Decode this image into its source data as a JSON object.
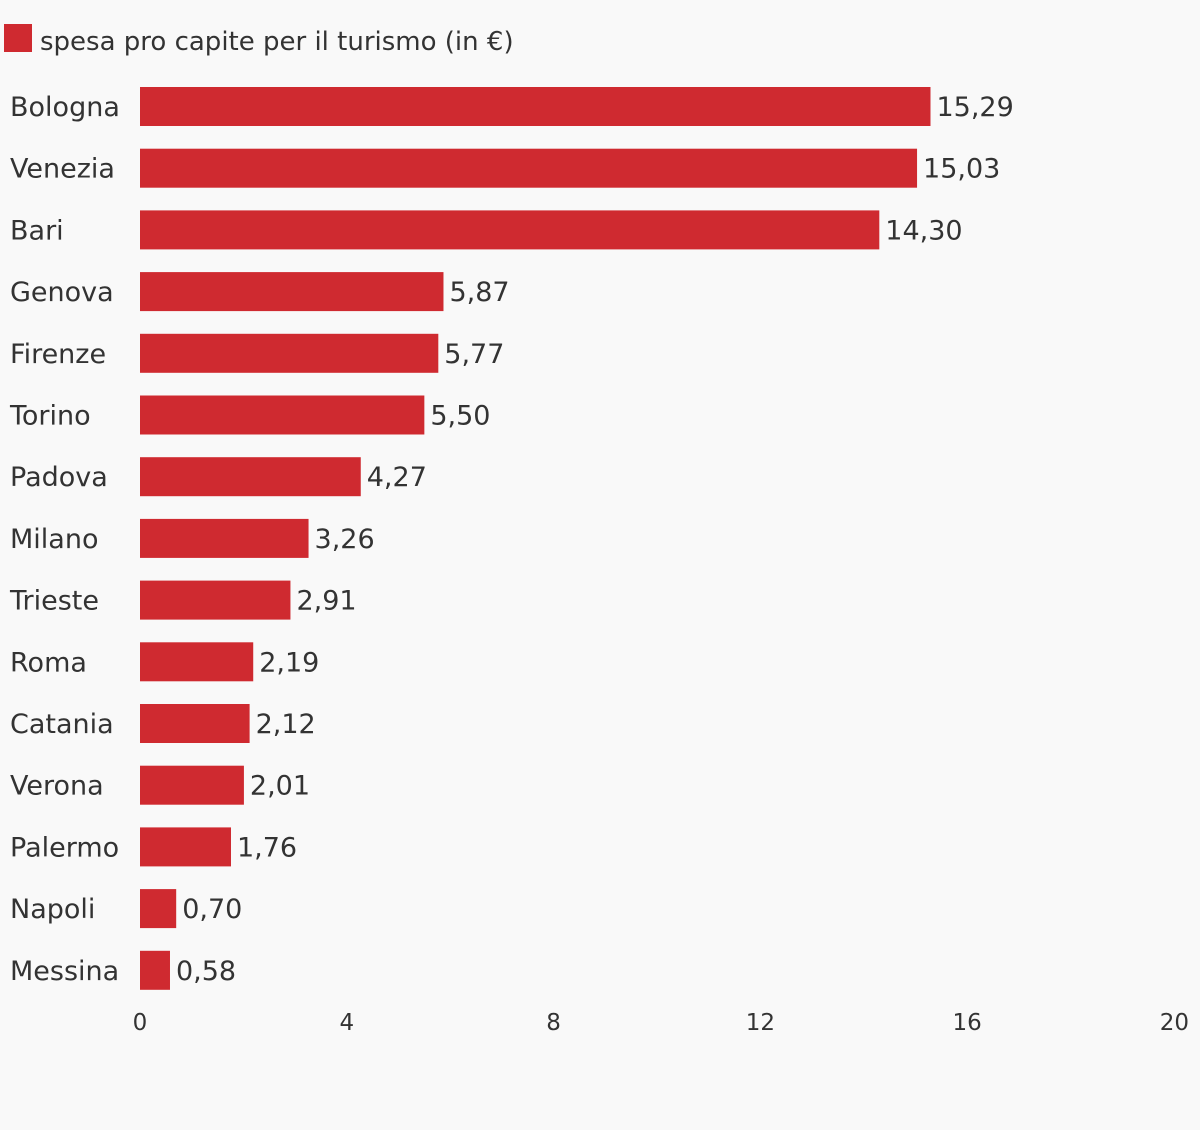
{
  "chart_data": {
    "type": "bar",
    "orientation": "horizontal",
    "categories": [
      "Bologna",
      "Venezia",
      "Bari",
      "Genova",
      "Firenze",
      "Torino",
      "Padova",
      "Milano",
      "Trieste",
      "Roma",
      "Catania",
      "Verona",
      "Palermo",
      "Napoli",
      "Messina"
    ],
    "series": [
      {
        "name": "spesa pro capite per il turismo (in €)",
        "color": "#cf2a30",
        "values": [
          15.29,
          15.03,
          14.3,
          5.87,
          5.77,
          5.5,
          4.27,
          3.26,
          2.91,
          2.19,
          2.12,
          2.01,
          1.76,
          0.7,
          0.58
        ],
        "labels": [
          "15,29",
          "15,03",
          "14,30",
          "5,87",
          "5,77",
          "5,50",
          "4,27",
          "3,26",
          "2,91",
          "2,19",
          "2,12",
          "2,01",
          "1,76",
          "0,70",
          "0,58"
        ]
      }
    ],
    "xlim": [
      0,
      20
    ],
    "xticks": [
      0,
      4,
      8,
      12,
      16,
      20
    ],
    "xtick_labels": [
      "0",
      "4",
      "8",
      "12",
      "16",
      "20"
    ],
    "title": "",
    "xlabel": "",
    "ylabel": "",
    "grid": false,
    "legend": "top-left"
  }
}
